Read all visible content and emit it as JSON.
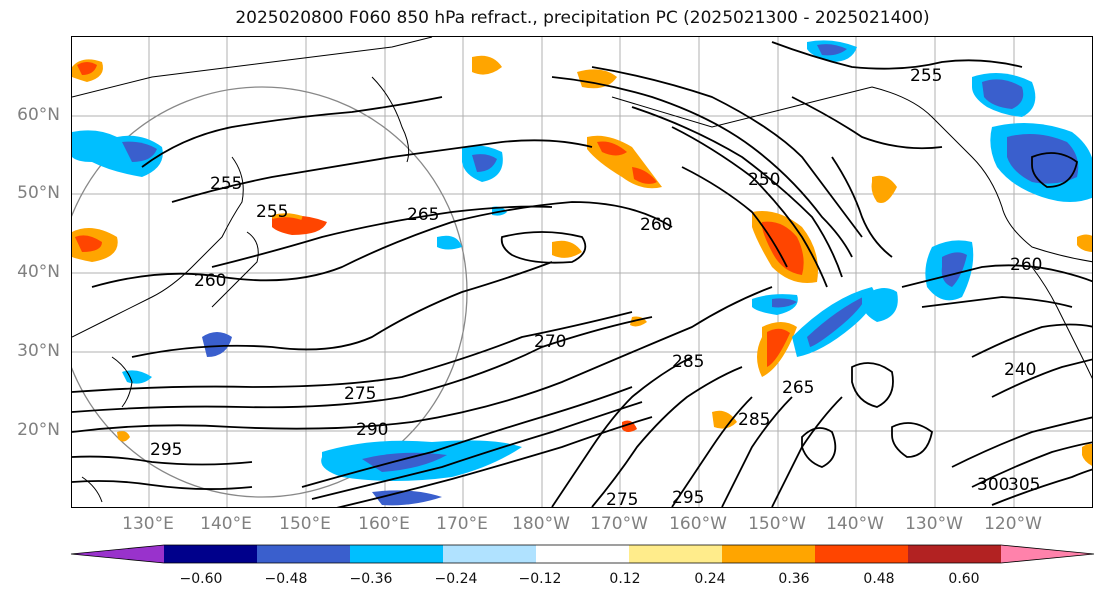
{
  "title": "2025020800 F060 850 hPa refract., precipitation PC (2025021300 - 2025021400)",
  "map": {
    "lat_labels": [
      "60°N",
      "50°N",
      "40°N",
      "30°N",
      "20°N"
    ],
    "lon_labels": [
      "130°E",
      "140°E",
      "150°E",
      "160°E",
      "170°E",
      "180°W",
      "170°W",
      "160°W",
      "150°W",
      "140°W",
      "130°W",
      "120°W"
    ],
    "contour_labels": [
      "250",
      "255",
      "260",
      "265",
      "270",
      "275",
      "285",
      "290",
      "295",
      "300",
      "305",
      "240"
    ]
  },
  "colorbar": {
    "ticks": [
      "−0.60",
      "−0.48",
      "−0.36",
      "−0.24",
      "−0.12",
      "0.12",
      "0.24",
      "0.36",
      "0.48",
      "0.60"
    ],
    "colors": [
      "#9932cc",
      "#00008b",
      "#3a5fcd",
      "#00bfff",
      "#b0e2ff",
      "#ffffff",
      "#ffec8b",
      "#ffa500",
      "#ff4500",
      "#b22222",
      "#ff82ab"
    ]
  }
}
